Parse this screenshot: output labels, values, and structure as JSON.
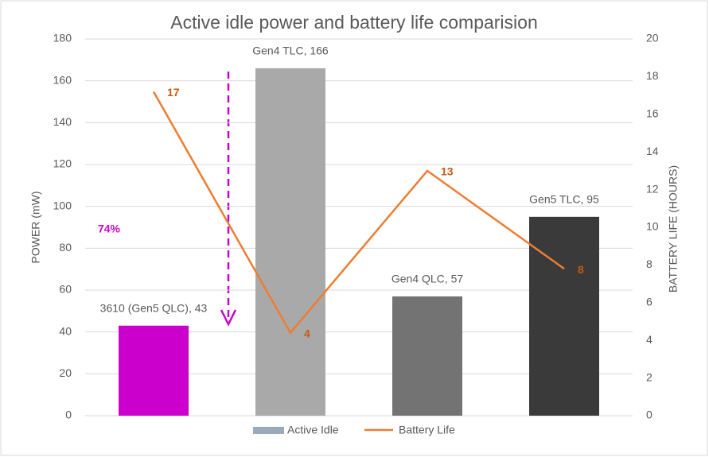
{
  "chart_data": {
    "type": "bar-line",
    "title": "Active idle power and battery life comparision",
    "y_label": "POWER (mW)",
    "y2_label": "BATTERY LIFE (HOURS)",
    "categories": [
      null,
      null,
      null,
      null
    ],
    "series": [
      {
        "name": "Active Idle",
        "type": "bar",
        "color": "#9aabbb",
        "colors": [
          "#cc00cc",
          "#a9a9a9",
          "#737373",
          "#3a3a3a"
        ],
        "values": [
          43,
          166,
          57,
          95
        ],
        "value_labels": [
          "3610 (Gen5 QLC), 43",
          "Gen4 TLC, 166",
          "Gen4 QLC, 57",
          "Gen5 TLC, 95"
        ]
      },
      {
        "name": "Battery Life",
        "type": "line",
        "axis": "y2",
        "color": "#ed7d31",
        "label_color": "#c55a11",
        "values": [
          17.2,
          4.4,
          13,
          7.8
        ],
        "value_labels": [
          "17",
          "4",
          "13",
          "8"
        ]
      }
    ],
    "annotations": [
      {
        "text": "74%",
        "color": "#cc00cc"
      }
    ],
    "ylim": [
      0,
      180
    ],
    "yticks": [
      0,
      20,
      40,
      60,
      80,
      100,
      120,
      140,
      160,
      180
    ],
    "y2lim": [
      0,
      20
    ],
    "y2ticks": [
      0,
      2,
      4,
      6,
      8,
      10,
      12,
      14,
      16,
      18,
      20
    ],
    "grid": true,
    "legend": "bottom"
  }
}
